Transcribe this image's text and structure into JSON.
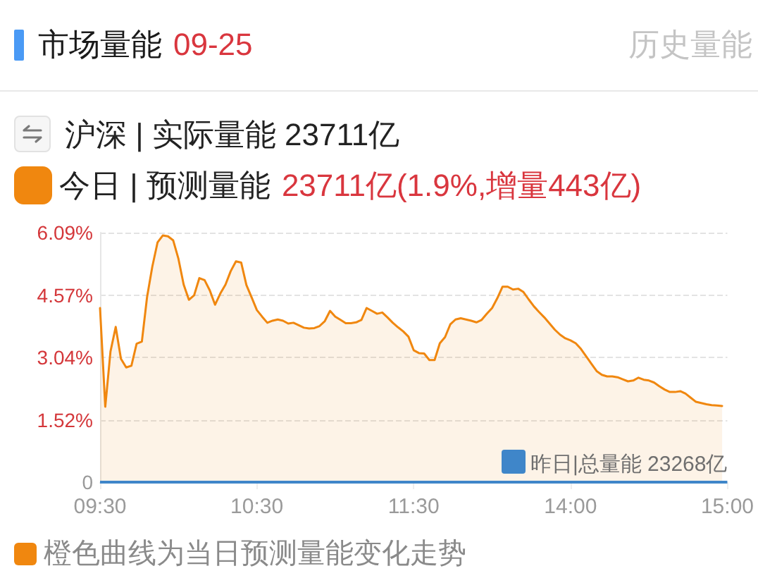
{
  "chart_data": {
    "type": "area",
    "title": "市场量能",
    "subtitle": "09-25",
    "annotations": [
      "历史量能",
      "沪深 | 实际量能 23711亿",
      "23711亿(1.9%,增量443亿)",
      "橙色曲线为当日预测量能变化走势"
    ],
    "categories": [
      "09:30",
      null,
      null,
      null,
      null,
      null,
      null,
      null,
      null,
      null,
      null,
      null,
      null,
      null,
      null,
      null,
      null,
      null,
      null,
      null,
      null,
      null,
      null,
      null,
      null,
      null,
      null,
      null,
      null,
      null,
      "10:30",
      null,
      null,
      null,
      null,
      null,
      null,
      null,
      null,
      null,
      null,
      null,
      null,
      null,
      null,
      null,
      null,
      null,
      null,
      null,
      null,
      null,
      null,
      null,
      null,
      null,
      null,
      null,
      null,
      null,
      "11:30",
      null,
      null,
      null,
      null,
      null,
      null,
      null,
      null,
      null,
      null,
      null,
      null,
      null,
      null,
      null,
      null,
      null,
      null,
      null,
      null,
      null,
      null,
      null,
      null,
      null,
      null,
      null,
      null,
      null,
      "14:00",
      null,
      null,
      null,
      null,
      null,
      null,
      null,
      null,
      null,
      null,
      null,
      null,
      null,
      null,
      null,
      null,
      null,
      null,
      null,
      null,
      null,
      null,
      null,
      null,
      null,
      null,
      null,
      null,
      null,
      "15:00"
    ],
    "ylim": [
      0,
      6.09
    ],
    "yticks": [
      0,
      {
        "value": 1.5225,
        "label": "1.52%"
      },
      {
        "value": 3.045,
        "label": "3.04%"
      },
      {
        "value": 4.5675,
        "label": "4.57%"
      },
      {
        "value": 6.09,
        "label": "6.09%"
      }
    ],
    "series": [
      {
        "name": "今日 | 预测量能",
        "color": "#f0870f",
        "values": [
          4.25,
          1.84,
          3.19,
          3.79,
          3.01,
          2.8,
          2.84,
          3.38,
          3.43,
          4.52,
          5.26,
          5.85,
          6.02,
          6.0,
          5.9,
          5.45,
          4.82,
          4.45,
          4.56,
          4.98,
          4.93,
          4.68,
          4.33,
          4.6,
          4.82,
          5.15,
          5.39,
          5.36,
          4.81,
          4.51,
          4.2,
          4.04,
          3.89,
          3.94,
          3.97,
          3.94,
          3.87,
          3.89,
          3.83,
          3.77,
          3.75,
          3.76,
          3.81,
          3.93,
          4.18,
          4.04,
          3.96,
          3.88,
          3.88,
          3.9,
          3.96,
          4.25,
          4.18,
          4.11,
          4.14,
          4.02,
          3.89,
          3.78,
          3.68,
          3.55,
          3.22,
          3.15,
          3.14,
          2.98,
          2.98,
          3.39,
          3.54,
          3.85,
          3.97,
          4.0,
          3.97,
          3.94,
          3.9,
          3.96,
          4.11,
          4.25,
          4.49,
          4.77,
          4.77,
          4.7,
          4.72,
          4.64,
          4.46,
          4.29,
          4.15,
          4.02,
          3.87,
          3.72,
          3.6,
          3.51,
          3.46,
          3.39,
          3.25,
          3.07,
          2.89,
          2.71,
          2.62,
          2.58,
          2.58,
          2.56,
          2.51,
          2.46,
          2.48,
          2.55,
          2.5,
          2.48,
          2.43,
          2.34,
          2.26,
          2.2,
          2.2,
          2.22,
          2.16,
          2.06,
          1.96,
          1.93,
          1.9,
          1.88,
          1.87,
          1.86,
          null
        ]
      }
    ],
    "ref_lines": [
      {
        "axis": "y",
        "value": 0,
        "label": "昨日|总量能 23268亿",
        "color": "#3f86c9"
      }
    ],
    "grid": "y",
    "legend": "top left",
    "marker": "none",
    "line_style": "solid"
  }
}
